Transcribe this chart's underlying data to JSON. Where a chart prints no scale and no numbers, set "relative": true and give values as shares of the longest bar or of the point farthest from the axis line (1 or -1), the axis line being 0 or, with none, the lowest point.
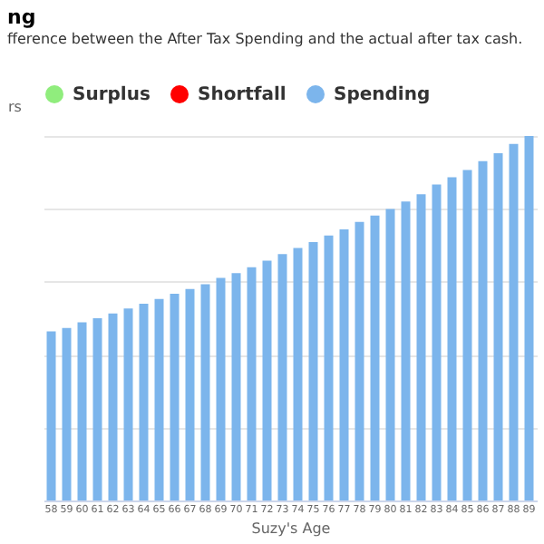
{
  "chart_data": {
    "type": "bar",
    "title": "ng",
    "subtitle": "fference between the After Tax Spending and the actual after tax cash.",
    "ylabel": "rs",
    "xlabel": "Suzy's Age",
    "categories": [
      "58",
      "59",
      "60",
      "61",
      "62",
      "63",
      "64",
      "65",
      "66",
      "67",
      "68",
      "69",
      "70",
      "71",
      "72",
      "73",
      "74",
      "75",
      "76",
      "77",
      "78",
      "79",
      "80",
      "81",
      "82",
      "83",
      "84",
      "85",
      "86",
      "87",
      "88",
      "89"
    ],
    "series": [
      {
        "name": "Surplus",
        "color": "#90ed7d",
        "values": [
          null,
          null,
          null,
          null,
          null,
          null,
          null,
          null,
          null,
          null,
          null,
          null,
          null,
          null,
          null,
          null,
          null,
          null,
          null,
          null,
          null,
          null,
          null,
          null,
          null,
          null,
          null,
          null,
          null,
          null,
          null,
          null
        ]
      },
      {
        "name": "Shortfall",
        "color": "#ff0000",
        "values": [
          null,
          null,
          null,
          null,
          null,
          null,
          null,
          null,
          null,
          null,
          null,
          null,
          null,
          null,
          null,
          null,
          null,
          null,
          null,
          null,
          null,
          null,
          null,
          null,
          null,
          null,
          null,
          null,
          null,
          null,
          null,
          null
        ]
      },
      {
        "name": "Spending",
        "color": "#7cb5ec",
        "values": [
          0.464,
          0.473,
          0.489,
          0.5,
          0.513,
          0.527,
          0.54,
          0.553,
          0.567,
          0.58,
          0.593,
          0.611,
          0.624,
          0.64,
          0.658,
          0.676,
          0.693,
          0.709,
          0.727,
          0.744,
          0.764,
          0.782,
          0.8,
          0.82,
          0.84,
          0.867,
          0.887,
          0.907,
          0.931,
          0.953,
          0.978,
          1
        ]
      }
    ],
    "relative": true,
    "grid": "y",
    "legend": "top"
  }
}
